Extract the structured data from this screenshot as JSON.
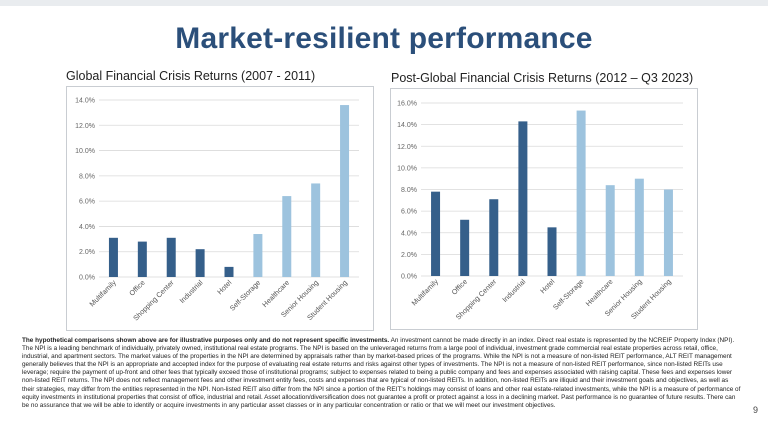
{
  "slide": {
    "title": "Market-resilient performance",
    "page_number": "9"
  },
  "colors": {
    "title": "#2b4f7a",
    "dark_bar": "#355f8a",
    "light_bar": "#9dc3de",
    "grid": "#d9d9d9"
  },
  "chart_data": [
    {
      "type": "bar",
      "title": "Global Financial Crisis Returns (2007 - 2011)",
      "categories": [
        "Multifamily",
        "Office",
        "Shopping Center",
        "Industrial",
        "Hotel",
        "Self-Storage",
        "Healthcare",
        "Senior Housing",
        "Student Housing"
      ],
      "values": [
        3.1,
        2.8,
        3.1,
        2.2,
        0.8,
        3.4,
        6.4,
        7.4,
        13.6
      ],
      "bar_colors": [
        "dark",
        "dark",
        "dark",
        "dark",
        "dark",
        "light",
        "light",
        "light",
        "light"
      ],
      "ylim": [
        0,
        14
      ],
      "yticks": [
        "0.0%",
        "2.0%",
        "4.0%",
        "6.0%",
        "8.0%",
        "10.0%",
        "12.0%",
        "14.0%"
      ],
      "xlabel": "",
      "ylabel": "",
      "grid": true
    },
    {
      "type": "bar",
      "title": "Post-Global Financial Crisis Returns (2012 – Q3 2023)",
      "categories": [
        "Multifamily",
        "Office",
        "Shopping Center",
        "Industrial",
        "Hotel",
        "Self-Storage",
        "Healthcare",
        "Senior Housing",
        "Student Housing"
      ],
      "values": [
        7.8,
        5.2,
        7.1,
        14.3,
        4.5,
        15.3,
        8.4,
        9.0,
        8.0
      ],
      "bar_colors": [
        "dark",
        "dark",
        "dark",
        "dark",
        "dark",
        "light",
        "light",
        "light",
        "light"
      ],
      "ylim": [
        0,
        16
      ],
      "yticks": [
        "0.0%",
        "2.0%",
        "4.0%",
        "6.0%",
        "8.0%",
        "10.0%",
        "12.0%",
        "14.0%",
        "16.0%"
      ],
      "xlabel": "",
      "ylabel": "",
      "grid": true
    }
  ],
  "disclaimer": {
    "bold": "The hypothetical comparisons shown above are for illustrative purposes only and do not represent specific investments.",
    "text": " An investment cannot be made directly in an index. Direct real estate is represented by the NCREIF Property Index (NPI). The NPI is a leading benchmark of individually, privately owned, institutional real estate programs. The NPI is based on the unleveraged returns from a large pool of individual, investment grade commercial real estate properties across retail, office, industrial, and apartment sectors. The market values of the properties in the NPI are determined by appraisals rather than by market-based prices of the programs. While the NPI is not a measure of non-listed REIT performance, ALT REIT management generally believes that the NPI is an appropriate and accepted index for the purpose of evaluating real estate returns and risks against other types of investments. The NPI is not a measure of non-listed REIT performance, since non-listed REITs use leverage; require the payment of up-front and other fees that typically exceed those of institutional programs; subject to expenses related to being a public company and fees and expenses associated with raising capital. These fees and expenses lower non-listed REIT returns. The NPI does not reflect management fees and other investment entity fees, costs and expenses that are typical of non-listed REITs. In addition, non-listed REITs are illiquid and their investment goals and objectives, as well as their strategies, may differ from the entities represented in the NPI. Non-listed REIT also differ from the NPI since a portion of the REIT's holdings may consist of loans and other real estate-related investments, while the NPI is a measure of performance of equity investments in institutional properties that consist of office, industrial and retail. Asset allocation/diversification does not guarantee a profit or protect against a loss in a declining market. Past performance is no guarantee of future results. There can be no assurance that we will be able to identify or acquire investments in any particular asset classes or in any particular concentration or ratio or that we will meet our investment objectives."
  }
}
